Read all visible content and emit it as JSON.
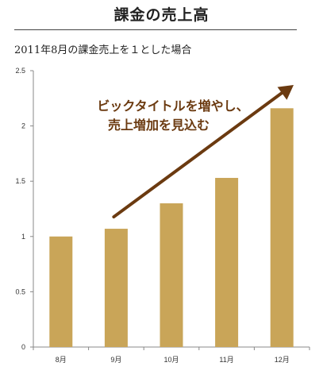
{
  "header": {
    "title": "課金の売上高",
    "subtitle": "2011年8月の課金売上を１とした場合"
  },
  "annotation": {
    "lines": [
      "ビックタイトルを増やし、",
      "売上増加を見込む"
    ]
  },
  "colors": {
    "bar": "#c9a558",
    "arrow": "#6b3a10",
    "axis": "#888888",
    "text": "#222222"
  },
  "chart_data": {
    "type": "bar",
    "categories": [
      "8月",
      "9月",
      "10月",
      "11月",
      "12月"
    ],
    "values": [
      1.0,
      1.07,
      1.3,
      1.53,
      2.16
    ],
    "ylim": [
      0,
      2.5
    ],
    "yticks": [
      "0",
      "0.5",
      "1",
      "1.5",
      "2",
      "2.5"
    ],
    "grid": false,
    "legend": "none",
    "annotation_arrow": "upward trend arrow from 9月 toward 12月"
  }
}
